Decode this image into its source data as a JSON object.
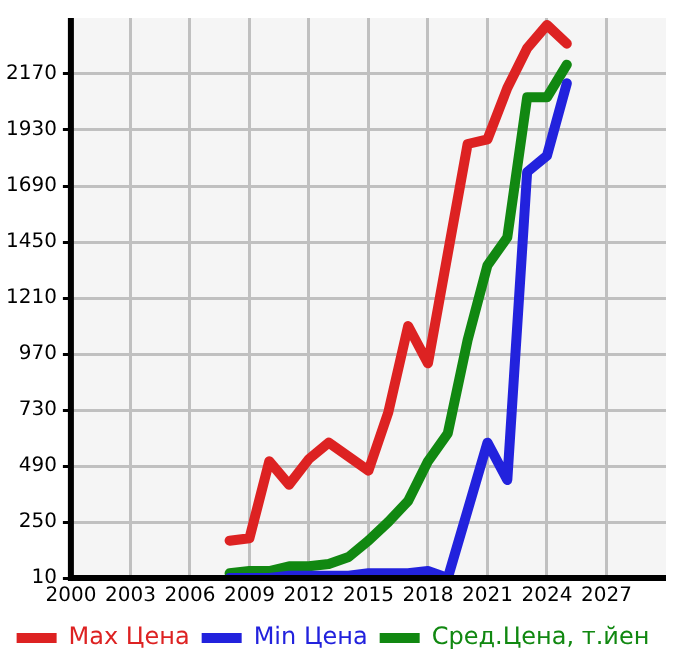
{
  "chart_data": {
    "type": "line",
    "x": [
      2008,
      2009,
      2010,
      2011,
      2012,
      2013,
      2014,
      2015,
      2016,
      2017,
      2018,
      2019,
      2020,
      2021,
      2022,
      2023,
      2024,
      2025
    ],
    "series": [
      {
        "name": "Max Цена",
        "color": "#dd2222",
        "values": [
          170,
          180,
          510,
          410,
          520,
          590,
          530,
          470,
          720,
          1090,
          930,
          1400,
          1870,
          1890,
          2110,
          2280,
          2380,
          2300
        ]
      },
      {
        "name": "Min Цена",
        "color": "#2222dd",
        "values": [
          10,
          10,
          10,
          20,
          20,
          20,
          20,
          30,
          30,
          30,
          40,
          10,
          300,
          590,
          430,
          1750,
          1820,
          2130
        ]
      },
      {
        "name": "Сред.Цена, т.йен",
        "color": "#118811",
        "values": [
          30,
          40,
          40,
          60,
          60,
          70,
          100,
          170,
          250,
          340,
          510,
          630,
          1030,
          1350,
          1470,
          2070,
          2070,
          2210
        ]
      }
    ],
    "xlim": [
      2000,
      2030
    ],
    "xticks": [
      2000,
      2003,
      2006,
      2009,
      2012,
      2015,
      2018,
      2021,
      2024,
      2027
    ],
    "ylim": [
      10,
      2410
    ],
    "yticks": [
      10,
      250,
      490,
      730,
      970,
      1210,
      1450,
      1690,
      1930,
      2170
    ],
    "grid": true,
    "legend": "bottom",
    "marker": "none",
    "line_style": "solid"
  }
}
